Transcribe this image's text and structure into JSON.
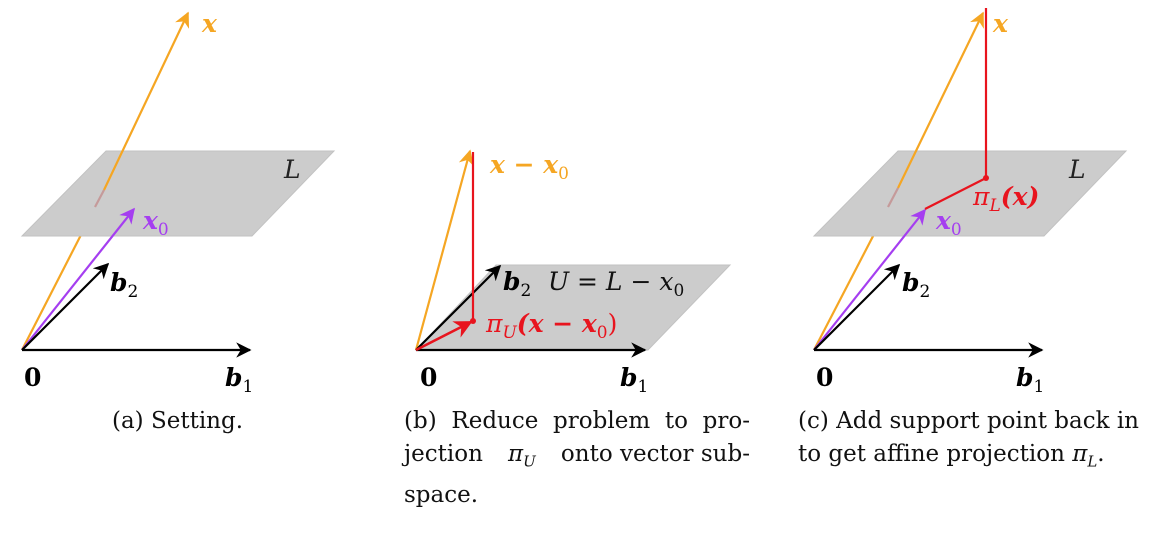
{
  "panels": [
    {
      "id": "a",
      "labels": {
        "x": "x",
        "x0": "x",
        "x0_sub": "0",
        "L": "L",
        "b2": "b",
        "b2_sub": "2",
        "b1": "b",
        "b1_sub": "1",
        "origin": "0"
      },
      "caption": "(a) Setting."
    },
    {
      "id": "b",
      "labels": {
        "x_minus_x0": "x − x",
        "x_minus_x0_sub": "0",
        "b2": "b",
        "b2_sub": "2",
        "U_eq": "U = L − x",
        "U_eq_sub": "0",
        "piU": "π",
        "piU_sub": "U",
        "piU_arg": "(x − x",
        "piU_arg_sub": "0",
        "piU_close": ")",
        "b1": "b",
        "b1_sub": "1",
        "origin": "0"
      },
      "caption": {
        "line1": "(b) Reduce problem to pro-",
        "line2_pre": "jection ",
        "line2_pi": "π",
        "line2_sub": "U",
        "line2_post": " onto vector sub-",
        "line3": "space."
      }
    },
    {
      "id": "c",
      "labels": {
        "x": "x",
        "L": "L",
        "piL": "π",
        "piL_sub": "L",
        "piL_arg": "(x)",
        "x0": "x",
        "x0_sub": "0",
        "b2": "b",
        "b2_sub": "2",
        "b1": "b",
        "b1_sub": "1",
        "origin": "0"
      },
      "caption": {
        "line1": "(c) Add support point back in",
        "line2_pre": "to get affine projection ",
        "line2_pi": "π",
        "line2_sub": "L",
        "line2_post": "."
      }
    }
  ],
  "colors": {
    "orange": "#F5A623",
    "purple": "#A53EF0",
    "red": "#E8141E",
    "black": "#000000",
    "plane": "#CCCCCC",
    "plane_edge": "#BDBDBD"
  }
}
